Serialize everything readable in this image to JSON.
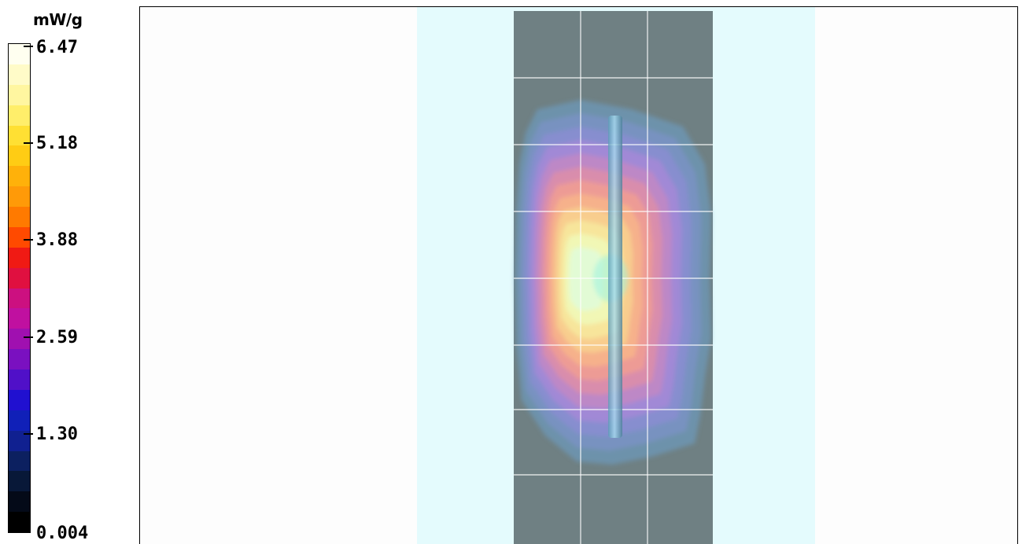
{
  "legend": {
    "unit": "mW/g",
    "tick_values": [
      "6.47",
      "5.18",
      "3.88",
      "2.59",
      "1.30",
      "0.004"
    ],
    "color_steps": [
      "#fffff0",
      "#fffbc8",
      "#fff6a0",
      "#ffee6a",
      "#ffe033",
      "#ffcc14",
      "#ffb10a",
      "#ff9a08",
      "#ff7a00",
      "#ff4a00",
      "#f01a14",
      "#e01040",
      "#cc1080",
      "#c010a0",
      "#a010b0",
      "#7a10c0",
      "#5010c8",
      "#2010d0",
      "#1020b8",
      "#102090",
      "#0c2060",
      "#081838",
      "#040a18",
      "#000000"
    ]
  },
  "field_colors": {
    "background": "#fdfdfd",
    "phantom": "#e4fbfd",
    "board": "#6f8083",
    "grid": "#ffffff",
    "dipole": "#7fbcd6"
  },
  "contour_levels": [
    "#6e98b8",
    "#7a92c2",
    "#8a8ed0",
    "#a488d6",
    "#c088c4",
    "#dc8ea8",
    "#ee9c92",
    "#f6b48a",
    "#f8d08e",
    "#f6e89c",
    "#f0f8b8",
    "#e0fbd8"
  ],
  "hotspot_color": "#9cf2e0"
}
